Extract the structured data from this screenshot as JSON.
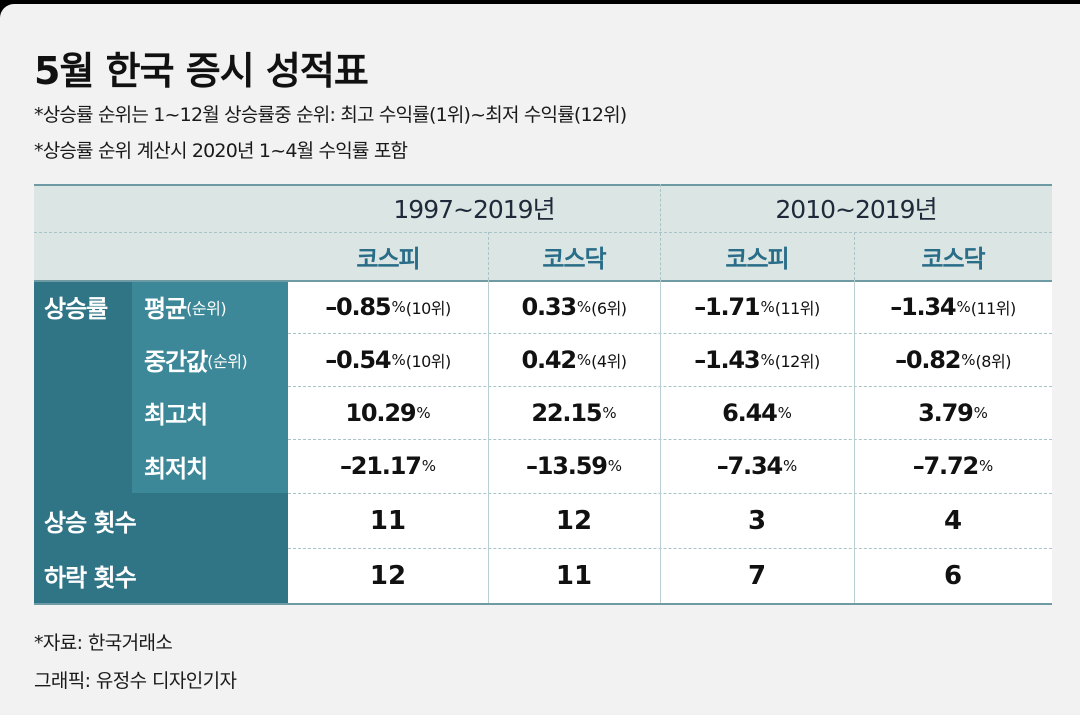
{
  "title": "5월 한국 증시 성적표",
  "notes": [
    "*상승률 순위는 1~12월 상승률중 순위: 최고 수익률(1위)~최저 수익률(12위)",
    "*상승률 순위 계산시 2020년 1~4월 수익률 포함"
  ],
  "periods": [
    "1997~2019년",
    "2010~2019년"
  ],
  "markets": [
    "코스피",
    "코스닥",
    "코스피",
    "코스닥"
  ],
  "row_group": "상승률",
  "sub_rows": [
    {
      "label": "평균",
      "label_suffix": "(순위)",
      "cells": [
        {
          "value": "–0.85",
          "unit": "%",
          "rank": "(10위)"
        },
        {
          "value": "0.33",
          "unit": "%",
          "rank": "(6위)"
        },
        {
          "value": "–1.71",
          "unit": "%",
          "rank": "(11위)"
        },
        {
          "value": "–1.34",
          "unit": "%",
          "rank": "(11위)"
        }
      ]
    },
    {
      "label": "중간값",
      "label_suffix": "(순위)",
      "cells": [
        {
          "value": "–0.54",
          "unit": "%",
          "rank": "(10위)"
        },
        {
          "value": "0.42",
          "unit": "%",
          "rank": "(4위)"
        },
        {
          "value": "–1.43",
          "unit": "%",
          "rank": "(12위)"
        },
        {
          "value": "–0.82",
          "unit": "%",
          "rank": "(8위)"
        }
      ]
    },
    {
      "label": "최고치",
      "label_suffix": "",
      "cells": [
        {
          "value": "10.29",
          "unit": "%",
          "rank": ""
        },
        {
          "value": "22.15",
          "unit": "%",
          "rank": ""
        },
        {
          "value": "6.44",
          "unit": "%",
          "rank": ""
        },
        {
          "value": "3.79",
          "unit": "%",
          "rank": ""
        }
      ]
    },
    {
      "label": "최저치",
      "label_suffix": "",
      "cells": [
        {
          "value": "–21.17",
          "unit": "%",
          "rank": ""
        },
        {
          "value": "–13.59",
          "unit": "%",
          "rank": ""
        },
        {
          "value": "–7.34",
          "unit": "%",
          "rank": ""
        },
        {
          "value": "–7.72",
          "unit": "%",
          "rank": ""
        }
      ]
    }
  ],
  "count_rows": [
    {
      "label": "상승 횟수",
      "values": [
        "11",
        "12",
        "3",
        "4"
      ]
    },
    {
      "label": "하락 횟수",
      "values": [
        "12",
        "11",
        "7",
        "6"
      ]
    }
  ],
  "footer": {
    "source": "*자료: 한국거래소",
    "credit": "그래픽: 유정수 디자인기자"
  },
  "colors": {
    "header_band": "#dbe6e4",
    "row_label": "#2f7586",
    "sub_label": "#3c8798",
    "market_text": "#2a6d88"
  }
}
